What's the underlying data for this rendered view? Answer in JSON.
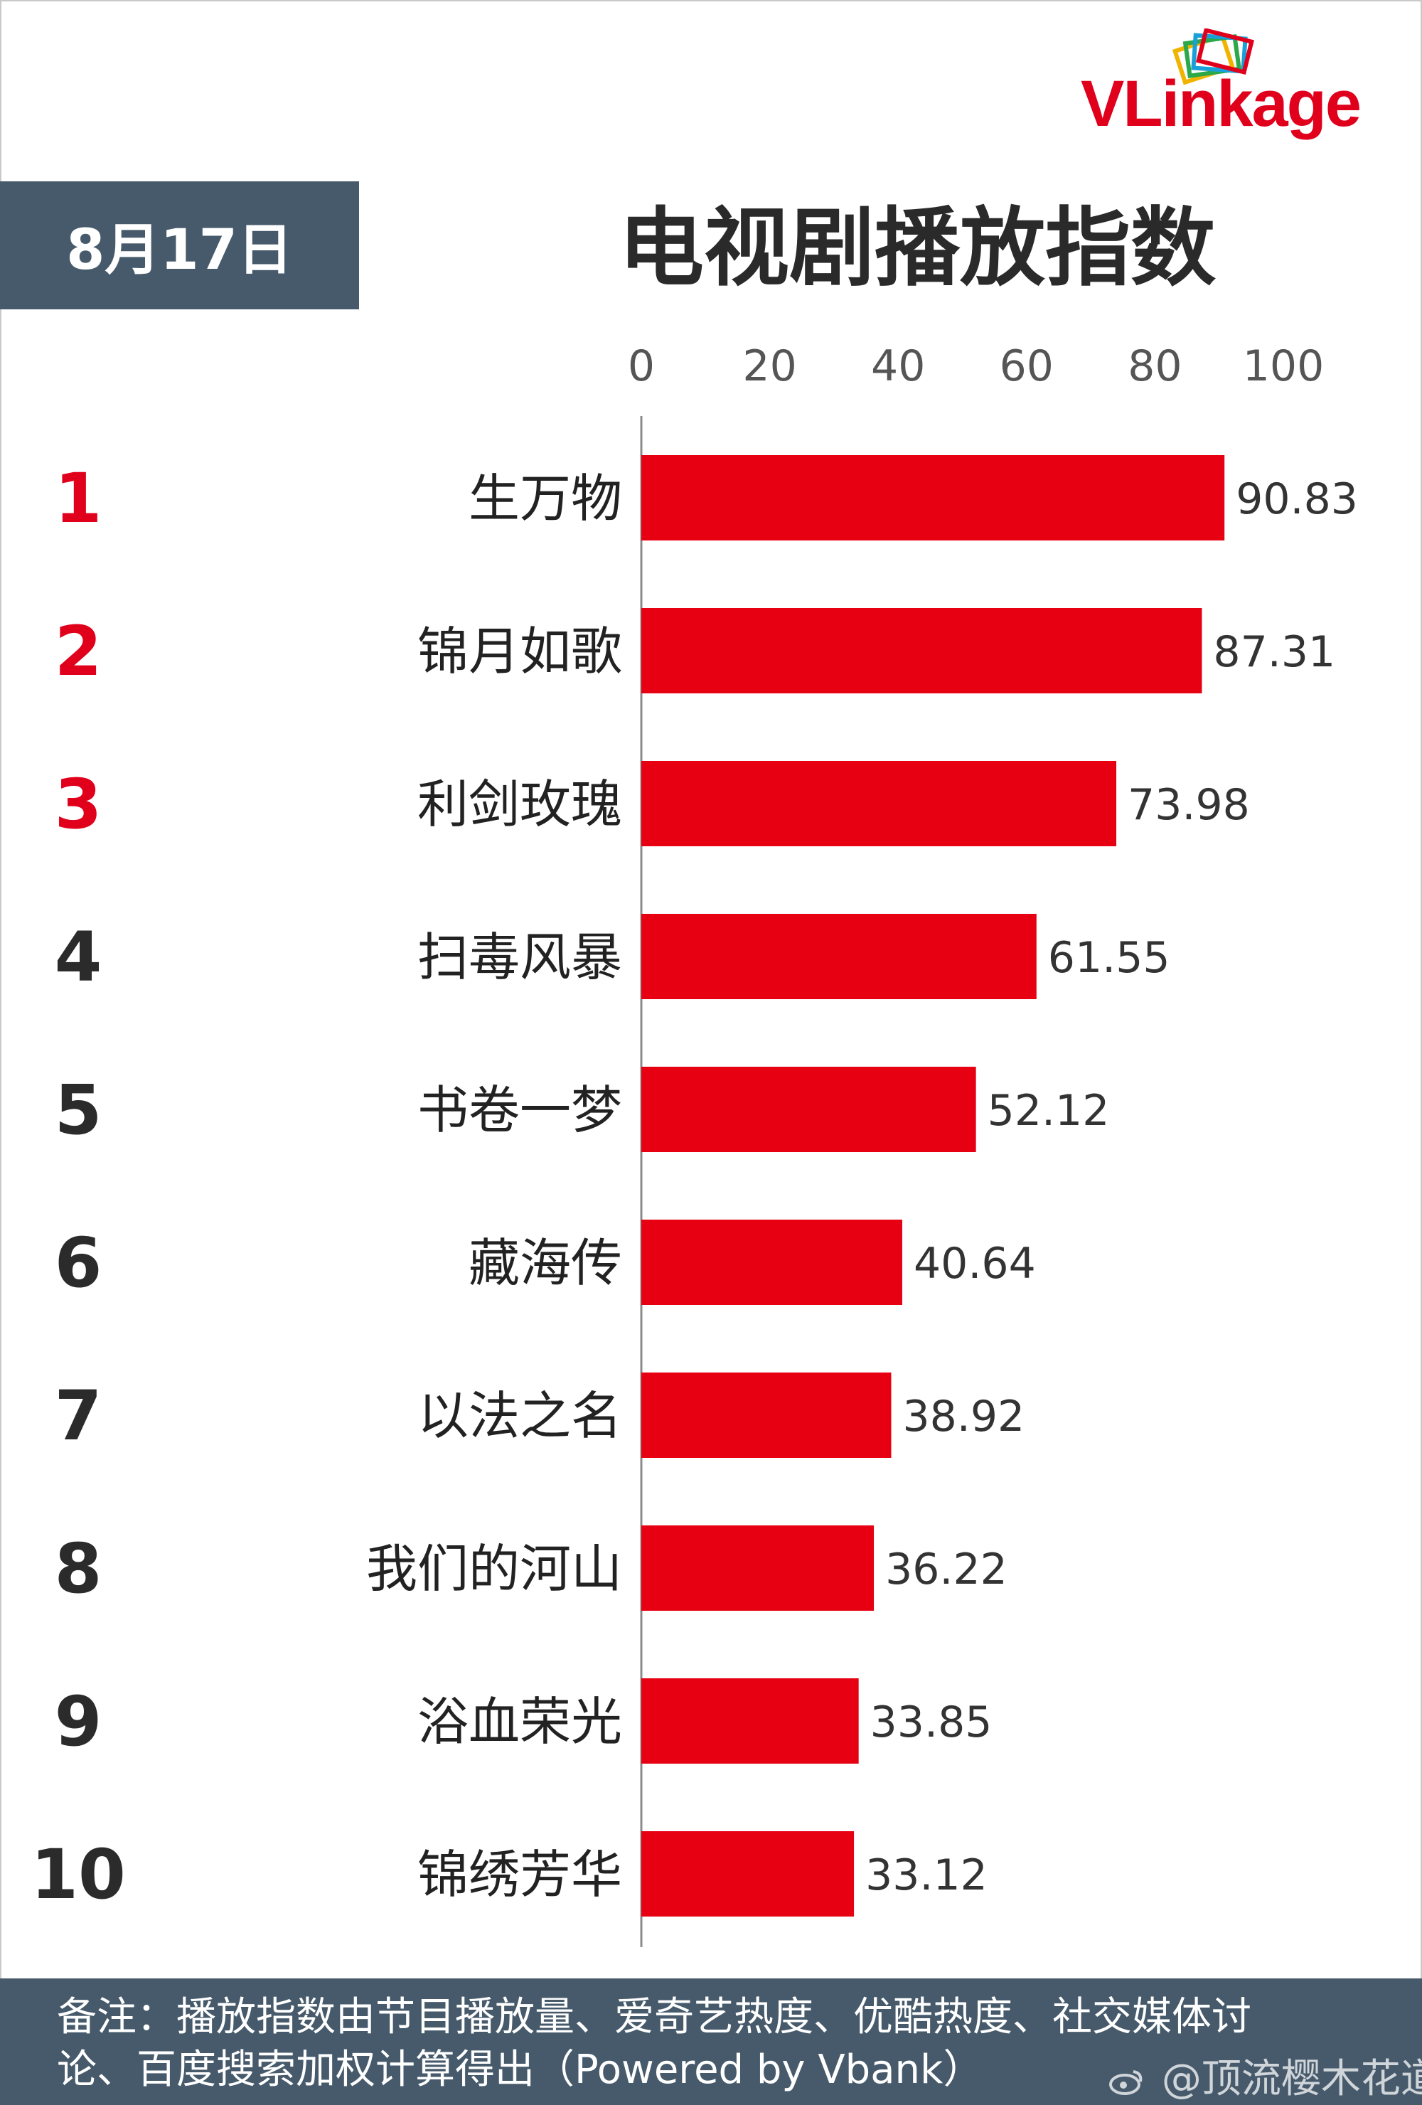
{
  "header": {
    "logo_text": "VLinkage",
    "date": "8月17日",
    "title": "电视剧播放指数"
  },
  "colors": {
    "bar": "#e60012",
    "rank_top": "#e0001b",
    "rank_other": "#2b2b2b",
    "header_box": "#465a6b"
  },
  "chart_data": {
    "type": "bar",
    "orientation": "horizontal",
    "title": "电视剧播放指数",
    "xlim": [
      0,
      100
    ],
    "x_ticks": [
      "0",
      "20",
      "40",
      "60",
      "80",
      "100"
    ],
    "ranks": [
      "1",
      "2",
      "3",
      "4",
      "5",
      "6",
      "7",
      "8",
      "9",
      "10"
    ],
    "categories": [
      "生万物",
      "锦月如歌",
      "利剑玫瑰",
      "扫毒风暴",
      "书卷一梦",
      "藏海传",
      "以法之名",
      "我们的河山",
      "浴血荣光",
      "锦绣芳华"
    ],
    "values": [
      90.83,
      87.31,
      73.98,
      61.55,
      52.12,
      40.64,
      38.92,
      36.22,
      33.85,
      33.12
    ],
    "value_labels": [
      "90.83",
      "87.31",
      "73.98",
      "61.55",
      "52.12",
      "40.64",
      "38.92",
      "36.22",
      "33.85",
      "33.12"
    ],
    "grid": false,
    "legend": "none"
  },
  "footer": {
    "note_line1": "备注：播放指数由节目播放量、爱奇艺热度、优酷热度、社交媒体讨",
    "note_line2": "论、百度搜索加权计算得出（Powered by Vbank）",
    "watermark": "@顶流樱木花道"
  }
}
